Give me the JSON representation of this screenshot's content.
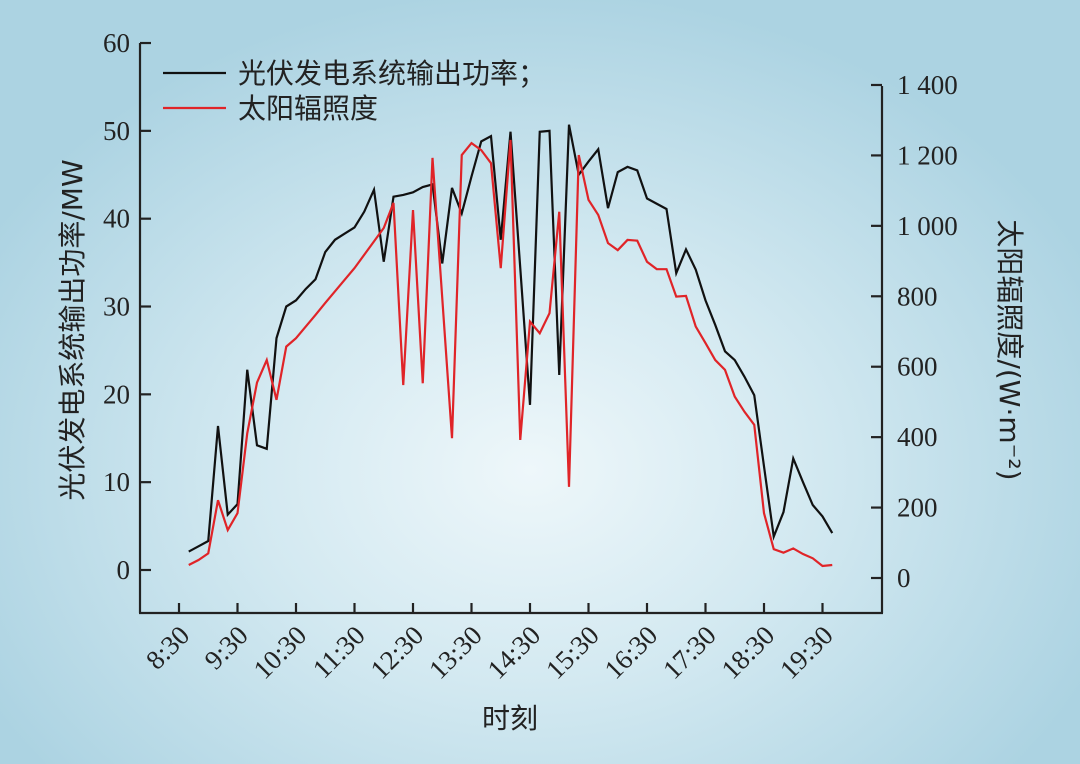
{
  "chart_data": {
    "type": "line",
    "xlabel": "时刻",
    "ylabel_left": "光伏发电系统输出功率/MW",
    "ylabel_right": "太阳辐照度/(W·m⁻²)",
    "ylim_left": [
      -5,
      60
    ],
    "ylim_right": [
      -100,
      1520
    ],
    "yticks_left": [
      "0",
      "10",
      "20",
      "30",
      "40",
      "50",
      "60"
    ],
    "yticks_right": [
      "0",
      "200",
      "400",
      "600",
      "800",
      "1 000",
      "1 200",
      "1 400"
    ],
    "xticks": [
      "8:30",
      "9:30",
      "10:30",
      "11:30",
      "12:30",
      "13:30",
      "14:30",
      "15:30",
      "16:30",
      "17:30",
      "18:30",
      "19:30"
    ],
    "grid": false,
    "legend_position": "top-left",
    "x": [
      "8:40",
      "8:50",
      "9:00",
      "9:10",
      "9:20",
      "9:30",
      "9:40",
      "9:50",
      "10:00",
      "10:10",
      "10:20",
      "10:30",
      "10:40",
      "10:50",
      "11:00",
      "11:10",
      "11:20",
      "11:30",
      "11:40",
      "11:50",
      "12:00",
      "12:10",
      "12:20",
      "12:30",
      "12:40",
      "12:50",
      "13:00",
      "13:10",
      "13:20",
      "13:30",
      "13:40",
      "13:50",
      "14:00",
      "14:10",
      "14:20",
      "14:30",
      "14:40",
      "14:50",
      "15:00",
      "15:10",
      "15:20",
      "15:30",
      "15:40",
      "15:50",
      "16:00",
      "16:10",
      "16:20",
      "16:30",
      "16:40",
      "16:50",
      "17:00",
      "17:10",
      "17:20",
      "17:30",
      "17:40",
      "17:50",
      "18:00",
      "18:10",
      "18:20",
      "18:30",
      "18:40",
      "18:50",
      "19:00",
      "19:10",
      "19:20",
      "19:30",
      "19:40"
    ],
    "series": [
      {
        "name": "光伏发电系统输出功率；",
        "axis": "left",
        "color": "#111111",
        "values": [
          2.1,
          2.7,
          3.3,
          16.4,
          6.3,
          7.5,
          22.8,
          14.2,
          13.8,
          26.4,
          30.0,
          30.7,
          32.0,
          33.1,
          36.2,
          37.6,
          38.3,
          39.0,
          40.8,
          43.3,
          35.1,
          42.5,
          42.7,
          43.0,
          43.6,
          43.9,
          34.9,
          43.5,
          40.6,
          44.8,
          48.8,
          49.4,
          37.6,
          49.9,
          34.4,
          18.8,
          49.9,
          50.0,
          22.2,
          50.7,
          45.0,
          46.5,
          47.9,
          41.2,
          45.3,
          45.9,
          45.5,
          42.3,
          41.7,
          41.1,
          33.8,
          36.5,
          34.2,
          30.7,
          27.9,
          24.9,
          23.9,
          22.0,
          19.9,
          11.8,
          3.8,
          6.6,
          12.7,
          10.0,
          7.4,
          6.1,
          4.2
        ]
      },
      {
        "name": "太阳辐照度",
        "axis": "right",
        "color": "#e02428",
        "values": [
          37,
          51,
          70,
          221,
          136,
          184,
          411,
          555,
          619,
          506,
          657,
          681,
          714,
          747,
          781,
          814,
          847,
          880,
          918,
          956,
          994,
          1065,
          548,
          1045,
          553,
          1193,
          795,
          397,
          1201,
          1235,
          1215,
          1178,
          880,
          1244,
          392,
          728,
          695,
          752,
          1040,
          259,
          1201,
          1074,
          1031,
          951,
          931,
          960,
          958,
          898,
          877,
          877,
          799,
          801,
          714,
          667,
          619,
          591,
          515,
          472,
          435,
          184,
          82,
          72,
          84,
          68,
          56,
          34,
          37
        ]
      }
    ]
  }
}
